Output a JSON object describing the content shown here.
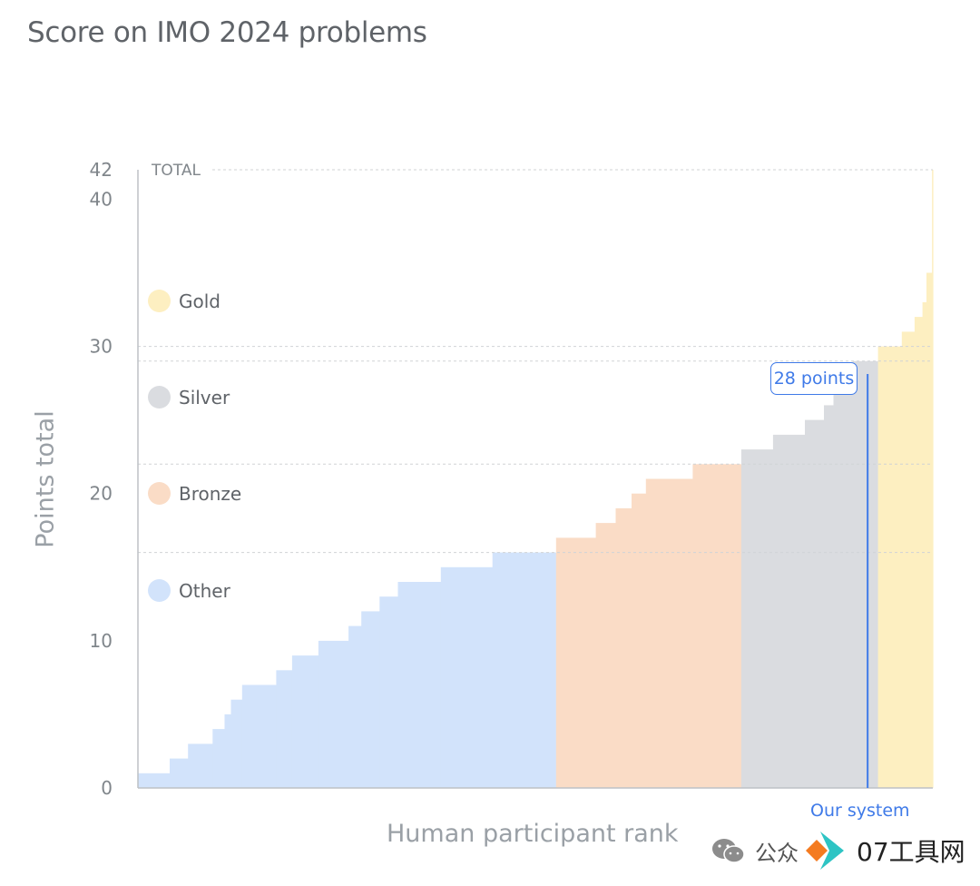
{
  "title": "Score on IMO 2024 problems",
  "chart_data": {
    "type": "area",
    "xlabel": "Human participant rank",
    "ylabel": "Points total",
    "ylim": [
      0,
      42
    ],
    "y_ticks": [
      "0",
      "10",
      "20",
      "30",
      "40",
      "42"
    ],
    "total_label": "TOTAL",
    "grid": "dotted horizontal lines at medal cutoffs",
    "legend_position": "left, inside plot",
    "legend": [
      {
        "name": "Gold",
        "color": "#fdefc1"
      },
      {
        "name": "Silver",
        "color": "#dadce0"
      },
      {
        "name": "Bronze",
        "color": "#fadcc6"
      },
      {
        "name": "Other",
        "color": "#d2e3fb"
      }
    ],
    "medal_cutoffs": {
      "bronze": 16,
      "silver": 22,
      "gold": 29
    },
    "series": [
      {
        "name": "Other",
        "color": "#d2e3fb",
        "steps": [
          {
            "x": [
              0,
              4
            ],
            "y": 1
          },
          {
            "x": [
              4,
              6.3
            ],
            "y": 2
          },
          {
            "x": [
              6.3,
              9.4
            ],
            "y": 3
          },
          {
            "x": [
              9.4,
              10.9
            ],
            "y": 4
          },
          {
            "x": [
              10.9,
              11.7
            ],
            "y": 5
          },
          {
            "x": [
              11.7,
              13.1
            ],
            "y": 6
          },
          {
            "x": [
              13.1,
              17.4
            ],
            "y": 7
          },
          {
            "x": [
              17.4,
              19.4
            ],
            "y": 8
          },
          {
            "x": [
              19.4,
              22.7
            ],
            "y": 9
          },
          {
            "x": [
              22.7,
              26.5
            ],
            "y": 10
          },
          {
            "x": [
              26.5,
              28.1
            ],
            "y": 11
          },
          {
            "x": [
              28.1,
              30.4
            ],
            "y": 12
          },
          {
            "x": [
              30.4,
              32.7
            ],
            "y": 13
          },
          {
            "x": [
              32.7,
              38.1
            ],
            "y": 14
          },
          {
            "x": [
              38.1,
              44.6
            ],
            "y": 15
          },
          {
            "x": [
              44.6,
              52.6
            ],
            "y": 16
          }
        ]
      },
      {
        "name": "Bronze",
        "color": "#fadcc6",
        "steps": [
          {
            "x": [
              52.6,
              57.6
            ],
            "y": 17
          },
          {
            "x": [
              57.6,
              60.1
            ],
            "y": 18
          },
          {
            "x": [
              60.1,
              62.1
            ],
            "y": 19
          },
          {
            "x": [
              62.1,
              63.9
            ],
            "y": 20
          },
          {
            "x": [
              63.9,
              69.8
            ],
            "y": 21
          },
          {
            "x": [
              69.8,
              75.9
            ],
            "y": 22
          }
        ]
      },
      {
        "name": "Silver",
        "color": "#dadce0",
        "steps": [
          {
            "x": [
              75.9,
              79.9
            ],
            "y": 23
          },
          {
            "x": [
              79.9,
              83.9
            ],
            "y": 24
          },
          {
            "x": [
              83.9,
              86.3
            ],
            "y": 25
          },
          {
            "x": [
              86.3,
              87.5
            ],
            "y": 26
          },
          {
            "x": [
              87.5,
              89.9
            ],
            "y": 28
          },
          {
            "x": [
              89.9,
              93.1
            ],
            "y": 29
          }
        ]
      },
      {
        "name": "Gold",
        "color": "#fdefc1",
        "steps": [
          {
            "x": [
              93.1,
              96.1
            ],
            "y": 30
          },
          {
            "x": [
              96.1,
              97.7
            ],
            "y": 31
          },
          {
            "x": [
              97.7,
              98.7
            ],
            "y": 32
          },
          {
            "x": [
              98.7,
              99.2
            ],
            "y": 33
          },
          {
            "x": [
              99.2,
              99.9
            ],
            "y": 35
          },
          {
            "x": [
              99.9,
              100
            ],
            "y": 42
          }
        ]
      }
    ],
    "annotation": {
      "label": "28 points",
      "value": 28,
      "marker_label": "Our system",
      "x_pct": 91.8
    }
  },
  "watermark": {
    "text": "公众",
    "brand": "07工具网"
  }
}
